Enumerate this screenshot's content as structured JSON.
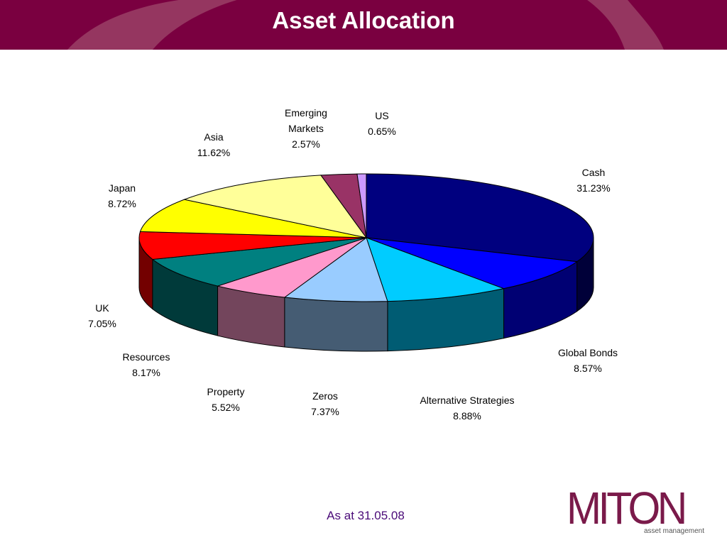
{
  "header": {
    "title": "Asset Allocation"
  },
  "footer": {
    "date_text": "As at 31.05.08"
  },
  "logo": {
    "word": "MITON",
    "subtitle": "asset management"
  },
  "colors": {
    "header_bg": "#7a0040",
    "accent_text": "#4a0a78",
    "logo": "#7a1a4a"
  },
  "chart_data": {
    "type": "pie",
    "style": "3d-exploded-none",
    "slices": [
      {
        "label": "Cash",
        "value": 31.23,
        "display": "31.23%",
        "color": "#00007f"
      },
      {
        "label": "Global Bonds",
        "value": 8.57,
        "display": "8.57%",
        "color": "#0000ff"
      },
      {
        "label": "Alternative Strategies",
        "value": 8.88,
        "display": "8.88%",
        "color": "#00ccff"
      },
      {
        "label": "Zeros",
        "value": 7.37,
        "display": "7.37%",
        "color": "#99ccff"
      },
      {
        "label": "Property",
        "value": 5.52,
        "display": "5.52%",
        "color": "#ff99cc"
      },
      {
        "label": "Resources",
        "value": 8.17,
        "display": "8.17%",
        "color": "#008080"
      },
      {
        "label": "UK",
        "value": 7.05,
        "display": "7.05%",
        "color": "#ff0000"
      },
      {
        "label": "Japan",
        "value": 8.72,
        "display": "8.72%",
        "color": "#ffff00"
      },
      {
        "label": "Asia",
        "value": 11.62,
        "display": "11.62%",
        "color": "#ffff99"
      },
      {
        "label": "Emerging Markets",
        "value": 2.57,
        "display": "2.57%",
        "color": "#993366"
      },
      {
        "label": "US",
        "value": 0.65,
        "display": "0.65%",
        "color": "#cc99ff"
      }
    ]
  }
}
